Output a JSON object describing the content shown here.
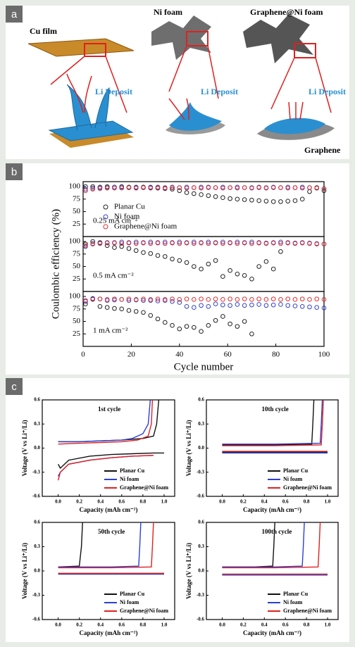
{
  "panel_labels": [
    "a",
    "b",
    "c"
  ],
  "diagram": {
    "labels": [
      "Cu film",
      "Ni foam",
      "Graphene@Ni foam",
      "Li Deposit",
      "Li Deposit",
      "Li Deposit",
      "Graphene"
    ]
  },
  "chart_data": [
    {
      "type": "scatter",
      "ylabel": "Coulombic efficiency (%)",
      "annotation": "0.25 mA cm⁻²",
      "xlim": [
        0,
        100
      ],
      "ylim": [
        0,
        110
      ],
      "yticks": [
        25,
        50,
        75,
        100
      ],
      "x": [
        1,
        4,
        7,
        10,
        13,
        16,
        19,
        22,
        25,
        28,
        31,
        34,
        37,
        40,
        43,
        46,
        49,
        52,
        55,
        58,
        61,
        64,
        67,
        70,
        73,
        76,
        79,
        82,
        85,
        88,
        91,
        94,
        97,
        100
      ],
      "series": [
        {
          "name": "Planar Cu",
          "color": "#222222",
          "values": [
            100,
            100,
            99,
            100,
            99,
            100,
            99,
            98,
            99,
            98,
            97,
            96,
            95,
            92,
            88,
            86,
            84,
            82,
            80,
            78,
            76,
            75,
            74,
            73,
            72,
            71,
            70,
            70,
            71,
            72,
            75,
            90,
            98,
            92
          ]
        },
        {
          "name": "Ni foam",
          "color": "#3344cc",
          "values": [
            95,
            97,
            98,
            98,
            99,
            99,
            98,
            99,
            98,
            99,
            99,
            98,
            99,
            98,
            99,
            98,
            99,
            99,
            98,
            99,
            98,
            99,
            98,
            98,
            99,
            98,
            99,
            98,
            99,
            98,
            99,
            98,
            97,
            96
          ]
        },
        {
          "name": "Graphene@Ni foam",
          "color": "#e03030",
          "values": [
            92,
            95,
            96,
            97,
            97,
            97,
            98,
            97,
            98,
            97,
            98,
            97,
            98,
            98,
            97,
            98,
            97,
            98,
            98,
            97,
            98,
            97,
            98,
            97,
            98,
            97,
            98,
            98,
            97,
            98,
            97,
            98,
            97,
            96
          ]
        }
      ]
    },
    {
      "type": "scatter",
      "annotation": "0.5 mA cm⁻²",
      "xlim": [
        0,
        100
      ],
      "ylim": [
        0,
        110
      ],
      "yticks": [
        25,
        50,
        75,
        100
      ],
      "x": [
        1,
        4,
        7,
        10,
        13,
        16,
        19,
        22,
        25,
        28,
        31,
        34,
        37,
        40,
        43,
        46,
        49,
        52,
        55,
        58,
        61,
        64,
        67,
        70,
        73,
        76,
        79,
        82,
        85,
        88,
        91,
        94,
        97,
        100
      ],
      "series": [
        {
          "color": "#222222",
          "values": [
            95,
            100,
            98,
            92,
            88,
            90,
            86,
            82,
            78,
            76,
            72,
            70,
            65,
            62,
            58,
            50,
            45,
            55,
            62,
            30,
            42,
            35,
            32,
            25,
            50,
            60,
            45,
            80,
            null,
            null,
            null,
            null,
            null,
            null
          ]
        },
        {
          "color": "#3344cc",
          "values": [
            90,
            96,
            97,
            98,
            98,
            99,
            98,
            99,
            98,
            99,
            98,
            99,
            98,
            99,
            98,
            99,
            98,
            99,
            98,
            99,
            98,
            99,
            98,
            99,
            98,
            97,
            98,
            99,
            98,
            97,
            98,
            97,
            96,
            95
          ]
        },
        {
          "color": "#e03030",
          "values": [
            92,
            95,
            96,
            97,
            97,
            96,
            97,
            96,
            97,
            96,
            97,
            96,
            97,
            96,
            97,
            96,
            97,
            96,
            97,
            96,
            97,
            96,
            97,
            96,
            97,
            96,
            97,
            96,
            97,
            96,
            97,
            96,
            95,
            95
          ]
        }
      ]
    },
    {
      "type": "scatter",
      "annotation": "1 mA cm⁻²",
      "xlabel": "Cycle number",
      "xlim": [
        0,
        100
      ],
      "ylim": [
        0,
        110
      ],
      "yticks": [
        25,
        50,
        75,
        100
      ],
      "xticks": [
        0,
        20,
        40,
        60,
        80,
        100
      ],
      "x": [
        1,
        4,
        7,
        10,
        13,
        16,
        19,
        22,
        25,
        28,
        31,
        34,
        37,
        40,
        43,
        46,
        49,
        52,
        55,
        58,
        61,
        64,
        67,
        70,
        73,
        76,
        79,
        82,
        85,
        88,
        91,
        94,
        97,
        100
      ],
      "series": [
        {
          "color": "#222222",
          "values": [
            85,
            95,
            80,
            78,
            76,
            75,
            72,
            70,
            68,
            62,
            55,
            48,
            42,
            35,
            40,
            38,
            30,
            42,
            52,
            60,
            45,
            40,
            50,
            25,
            null,
            null,
            null,
            null,
            null,
            null,
            null,
            null,
            null,
            null
          ]
        },
        {
          "color": "#3344cc",
          "values": [
            90,
            96,
            95,
            92,
            93,
            94,
            92,
            93,
            92,
            92,
            91,
            92,
            90,
            88,
            80,
            78,
            82,
            80,
            85,
            83,
            82,
            84,
            82,
            83,
            84,
            82,
            83,
            84,
            82,
            81,
            80,
            79,
            78,
            77
          ]
        },
        {
          "color": "#e03030",
          "values": [
            92,
            94,
            95,
            94,
            95,
            94,
            95,
            94,
            95,
            94,
            95,
            94,
            95,
            94,
            95,
            94,
            95,
            94,
            95,
            94,
            95,
            94,
            95,
            94,
            95,
            94,
            95,
            94,
            95,
            94,
            95,
            94,
            95,
            94
          ]
        }
      ]
    },
    {
      "type": "line",
      "title": "1st cycle",
      "xlabel": "Capacity (mAh cm⁻²)",
      "ylabel": "Voltage (V vs Li⁺/Li)",
      "xlim": [
        -0.15,
        1.1
      ],
      "ylim": [
        -0.6,
        0.6
      ],
      "xticks": [
        {
          "value": 0,
          "label": "0.0"
        },
        0.2,
        0.4,
        0.6,
        0.8,
        {
          "value": 1,
          "label": "1.0"
        }
      ],
      "yticks": [
        -0.6,
        -0.3,
        {
          "value": 0,
          "label": "0.0"
        },
        0.3,
        0.6
      ],
      "series": [
        {
          "name": "Planar Cu",
          "color": "#111111",
          "x": [
            0,
            0.02,
            0.1,
            0.3,
            0.5,
            0.7,
            0.9,
            1.0,
            null,
            0,
            0.2,
            0.4,
            0.6,
            0.8,
            0.9,
            0.93,
            0.95
          ],
          "values": [
            -0.2,
            -0.25,
            -0.15,
            -0.1,
            -0.08,
            -0.07,
            -0.06,
            -0.06,
            null,
            0.08,
            0.08,
            0.09,
            0.1,
            0.12,
            0.15,
            0.3,
            0.6
          ]
        },
        {
          "name": "Ni foam",
          "color": "#2b3fd6",
          "x": [
            0,
            0.02,
            0.1,
            0.3,
            0.5,
            0.7,
            0.9,
            null,
            0,
            0.2,
            0.4,
            0.6,
            0.7,
            0.8,
            0.85,
            0.87
          ],
          "values": [
            -0.35,
            -0.3,
            -0.2,
            -0.15,
            -0.12,
            -0.1,
            -0.09,
            null,
            0.08,
            0.08,
            0.09,
            0.1,
            0.12,
            0.18,
            0.3,
            0.6
          ]
        },
        {
          "name": "Graphene@Ni foam",
          "color": "#e02020",
          "x": [
            0,
            0.02,
            0.1,
            0.3,
            0.5,
            0.7,
            0.9,
            null,
            0,
            0.2,
            0.4,
            0.6,
            0.75,
            0.85,
            0.88,
            0.89
          ],
          "values": [
            -0.4,
            -0.3,
            -0.2,
            -0.15,
            -0.12,
            -0.1,
            -0.09,
            null,
            0.05,
            0.06,
            0.07,
            0.08,
            0.1,
            0.15,
            0.3,
            0.6
          ]
        }
      ]
    },
    {
      "type": "line",
      "title": "10th cycle",
      "xlabel": "Capacity (mAh cm⁻²)",
      "ylabel": "Voltage (V vs Li⁺/Li)",
      "xlim": [
        -0.15,
        1.1
      ],
      "ylim": [
        -0.6,
        0.6
      ],
      "xticks": [
        {
          "value": 0,
          "label": "0.0"
        },
        0.2,
        0.4,
        0.6,
        0.8,
        {
          "value": 1,
          "label": "1.0"
        }
      ],
      "yticks": [
        -0.6,
        -0.3,
        {
          "value": 0,
          "label": "0.0"
        },
        0.3,
        0.6
      ],
      "series": [
        {
          "name": "Planar Cu",
          "color": "#111111",
          "x": [
            0,
            0.5,
            1.0,
            null,
            0,
            0.5,
            0.85,
            0.86,
            0.87
          ],
          "values": [
            -0.05,
            -0.05,
            -0.05,
            null,
            0.04,
            0.04,
            0.05,
            0.3,
            0.6
          ]
        },
        {
          "name": "Ni foam",
          "color": "#2b3fd6",
          "x": [
            0,
            0.5,
            1.0,
            null,
            0,
            0.5,
            0.93,
            0.94,
            0.95
          ],
          "values": [
            -0.06,
            -0.06,
            -0.06,
            null,
            0.05,
            0.05,
            0.06,
            0.3,
            0.6
          ]
        },
        {
          "name": "Graphene@Ni foam",
          "color": "#e02020",
          "x": [
            0,
            0.5,
            1.0,
            null,
            0,
            0.5,
            0.94,
            0.95,
            0.96
          ],
          "values": [
            -0.04,
            -0.04,
            -0.04,
            null,
            0.03,
            0.03,
            0.04,
            0.3,
            0.6
          ]
        }
      ]
    },
    {
      "type": "line",
      "title": "50th cycle",
      "xlabel": "Capacity (mAh cm⁻²)",
      "ylabel": "Voltage (V vs Li⁺/Li)",
      "xlim": [
        -0.15,
        1.1
      ],
      "ylim": [
        -0.6,
        0.6
      ],
      "xticks": [
        {
          "value": 0,
          "label": "0.0"
        },
        0.2,
        0.4,
        0.6,
        0.8,
        {
          "value": 1,
          "label": "1.0"
        }
      ],
      "yticks": [
        -0.6,
        -0.3,
        {
          "value": 0,
          "label": "0.0"
        },
        0.3,
        0.6
      ],
      "series": [
        {
          "name": "Planar Cu",
          "color": "#111111",
          "x": [
            0,
            0.5,
            1.0,
            null,
            0,
            0.2,
            0.22,
            0.23
          ],
          "values": [
            -0.03,
            -0.03,
            -0.03,
            null,
            0.05,
            0.06,
            0.3,
            0.6
          ]
        },
        {
          "name": "Ni foam",
          "color": "#2b3fd6",
          "x": [
            0,
            0.5,
            1.0,
            null,
            0,
            0.5,
            0.76,
            0.77,
            0.78
          ],
          "values": [
            -0.04,
            -0.04,
            -0.04,
            null,
            0.05,
            0.05,
            0.06,
            0.3,
            0.6
          ]
        },
        {
          "name": "Graphene@Ni foam",
          "color": "#e02020",
          "x": [
            0,
            0.5,
            1.0,
            null,
            0,
            0.5,
            0.88,
            0.89,
            0.9
          ],
          "values": [
            -0.03,
            -0.03,
            -0.03,
            null,
            0.04,
            0.04,
            0.05,
            0.3,
            0.6
          ]
        }
      ]
    },
    {
      "type": "line",
      "title": "100th cycle",
      "xlabel": "Capacity (mAh cm⁻²)",
      "ylabel": "Voltage (V vs Li⁺/Li)",
      "xlim": [
        -0.15,
        1.1
      ],
      "ylim": [
        -0.6,
        0.6
      ],
      "xticks": [
        {
          "value": 0,
          "label": "0.0"
        },
        0.2,
        0.4,
        0.6,
        0.8,
        {
          "value": 1,
          "label": "1.0"
        }
      ],
      "yticks": [
        -0.6,
        -0.3,
        {
          "value": 0,
          "label": "0.0"
        },
        0.3,
        0.6
      ],
      "series": [
        {
          "name": "Planar Cu",
          "color": "#111111",
          "x": [
            0,
            0.5,
            1.0,
            null,
            0,
            0.3,
            0.48,
            0.49,
            0.5
          ],
          "values": [
            -0.04,
            -0.04,
            -0.04,
            null,
            0.05,
            0.05,
            0.06,
            0.3,
            0.6
          ]
        },
        {
          "name": "Ni foam",
          "color": "#2b3fd6",
          "x": [
            0,
            0.5,
            1.0,
            null,
            0,
            0.5,
            0.76,
            0.77,
            0.78
          ],
          "values": [
            -0.05,
            -0.05,
            -0.05,
            null,
            0.05,
            0.05,
            0.06,
            0.3,
            0.6
          ]
        },
        {
          "name": "Graphene@Ni foam",
          "color": "#e02020",
          "x": [
            0,
            0.5,
            1.0,
            null,
            0,
            0.5,
            0.91,
            0.92,
            0.93
          ],
          "values": [
            -0.04,
            -0.04,
            -0.04,
            null,
            0.04,
            0.04,
            0.05,
            0.3,
            0.6
          ]
        }
      ]
    }
  ]
}
